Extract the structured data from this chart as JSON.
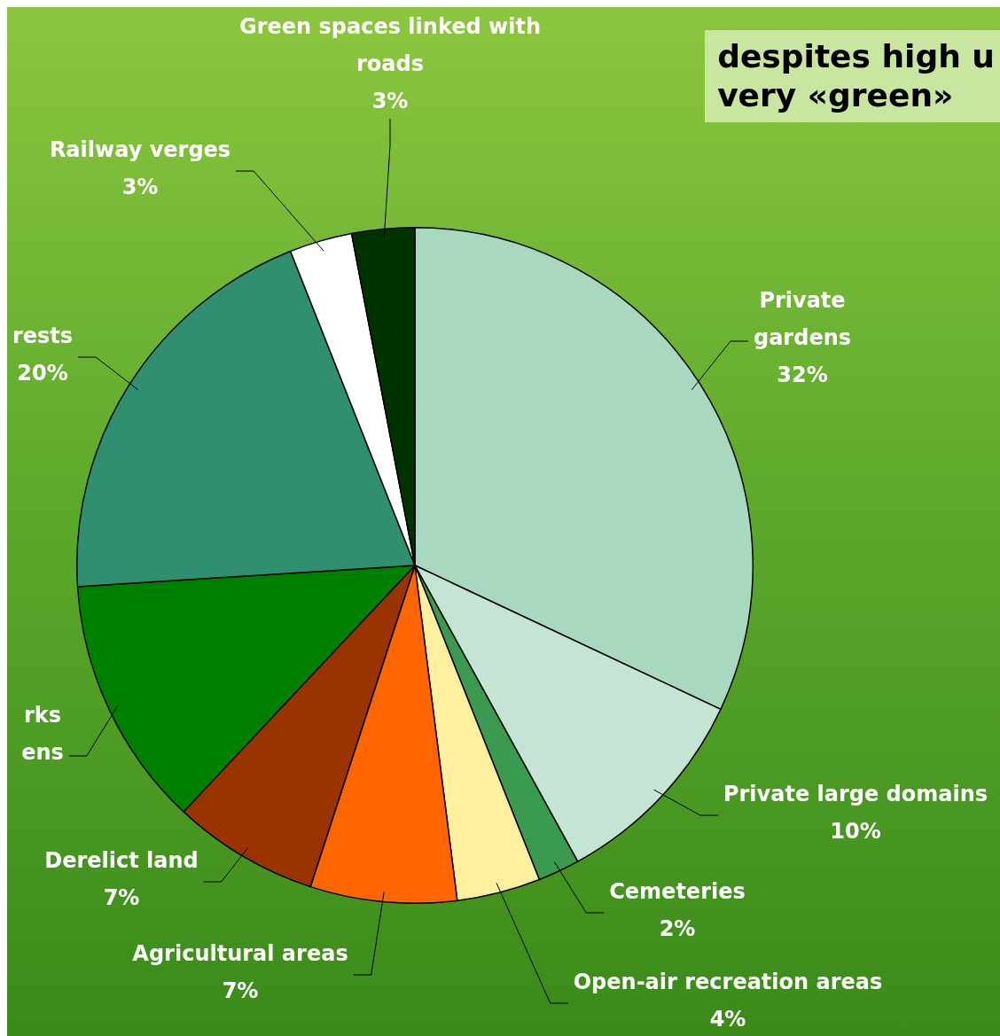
{
  "chart_data": {
    "type": "pie",
    "title": "despites high u\nvery «green»",
    "categories": [
      "Private\ngardens",
      "Private large domains",
      "Cemeteries",
      "Open-air recreation areas",
      "Agricultural areas",
      "Derelict land",
      "rks\nens",
      "rests",
      "Railway verges",
      "Green spaces linked with\nroads"
    ],
    "values": [
      32,
      10,
      2,
      4,
      7,
      7,
      12,
      20,
      3,
      3
    ],
    "value_labels": [
      "32%",
      "10%",
      "2%",
      "4%",
      "7%",
      "7%",
      null,
      "20%",
      "3%",
      "3%"
    ],
    "colors": [
      "#a8d8c0",
      "#c4e4d4",
      "#3a9a50",
      "#fff0a0",
      "#ff6600",
      "#993300",
      "#008000",
      "#2e9070",
      "#ffffff",
      "#003300"
    ],
    "legend": false
  }
}
